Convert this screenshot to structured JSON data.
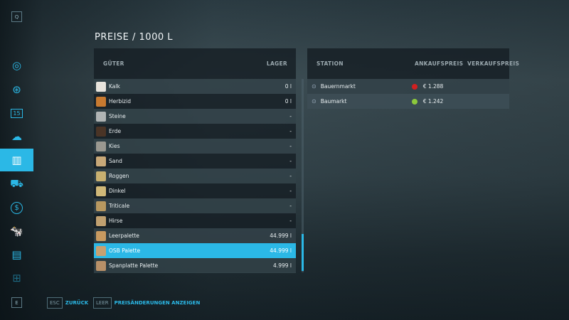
{
  "sidebar": {
    "top_key": "Q",
    "bottom_key": "E",
    "items": [
      {
        "icon": "globe-map-icon"
      },
      {
        "icon": "steering-wheel-icon"
      },
      {
        "icon": "calendar-icon",
        "label": "15"
      },
      {
        "icon": "weather-icon"
      },
      {
        "icon": "prices-chart-icon",
        "active": true
      },
      {
        "icon": "tractor-icon"
      },
      {
        "icon": "finance-dollar-icon"
      },
      {
        "icon": "animals-cow-icon"
      },
      {
        "icon": "contracts-icon"
      },
      {
        "icon": "production-icon"
      }
    ]
  },
  "title": "PREISE / 1000 L",
  "goods": {
    "col_goods": "GÜTER",
    "col_storage": "LAGER",
    "selected_index": 10,
    "scroll_position_percent": 90,
    "rows": [
      {
        "name": "Kalk",
        "storage": "0 l",
        "color": "#e8e4dc"
      },
      {
        "name": "Herbizid",
        "storage": "0 l",
        "color": "#c87a30"
      },
      {
        "name": "Steine",
        "storage": "-",
        "color": "#b0b4b4"
      },
      {
        "name": "Erde",
        "storage": "-",
        "color": "#4a3426"
      },
      {
        "name": "Kies",
        "storage": "-",
        "color": "#9a9890"
      },
      {
        "name": "Sand",
        "storage": "-",
        "color": "#c8a878"
      },
      {
        "name": "Roggen",
        "storage": "-",
        "color": "#c8b070"
      },
      {
        "name": "Dinkel",
        "storage": "-",
        "color": "#d0b878"
      },
      {
        "name": "Triticale",
        "storage": "-",
        "color": "#b89860"
      },
      {
        "name": "Hirse",
        "storage": "-",
        "color": "#c0a070"
      },
      {
        "name": "Leerpalette",
        "storage": "44.999 l",
        "color": "#c89a60"
      },
      {
        "name": "OSB Palette",
        "storage": "44.999 l",
        "color": "#c8a070"
      },
      {
        "name": "Spanplatte Palette",
        "storage": "4.999 l",
        "color": "#b89068"
      }
    ]
  },
  "stations": {
    "col_station": "STATION",
    "col_buy": "ANKAUFSPREIS",
    "col_sell": "VERKAUFSPREIS",
    "rows": [
      {
        "name": "Bauernmarkt",
        "price": "€ 1.288",
        "trend": "down",
        "trend_color": "#d02020"
      },
      {
        "name": "Baumarkt",
        "price": "€ 1.242",
        "trend": "up",
        "trend_color": "#8cc83c"
      }
    ]
  },
  "footer": {
    "back_key": "ESC",
    "back_label": "ZURÜCK",
    "toggle_key": "LEER",
    "toggle_label": "PREISÄNDERUNGEN ANZEIGEN"
  }
}
